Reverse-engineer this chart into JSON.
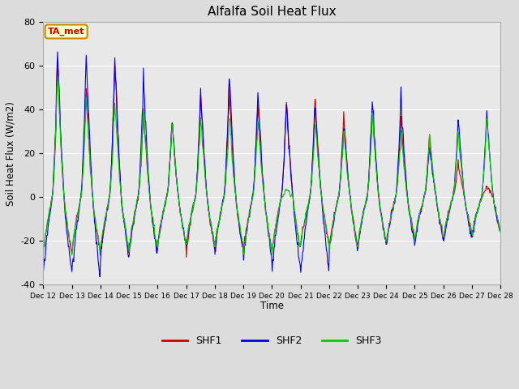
{
  "title": "Alfalfa Soil Heat Flux",
  "ylabel": "Soil Heat Flux (W/m2)",
  "xlabel": "Time",
  "ylim": [
    -40,
    80
  ],
  "bg_color": "#dcdcdc",
  "plot_bg_color": "#e8e8e8",
  "grid_color": "#ffffff",
  "annotation_text": "TA_met",
  "annotation_bg": "#ffffcc",
  "annotation_border": "#cc8800",
  "annotation_text_color": "#cc0000",
  "line_colors": [
    "#cc0000",
    "#0000ee",
    "#00cc00"
  ],
  "line_labels": [
    "SHF1",
    "SHF2",
    "SHF3"
  ],
  "ytick_values": [
    -40,
    -20,
    0,
    20,
    40,
    60,
    80
  ],
  "n_days": 16,
  "pts_per_day": 48,
  "start_day": 12
}
